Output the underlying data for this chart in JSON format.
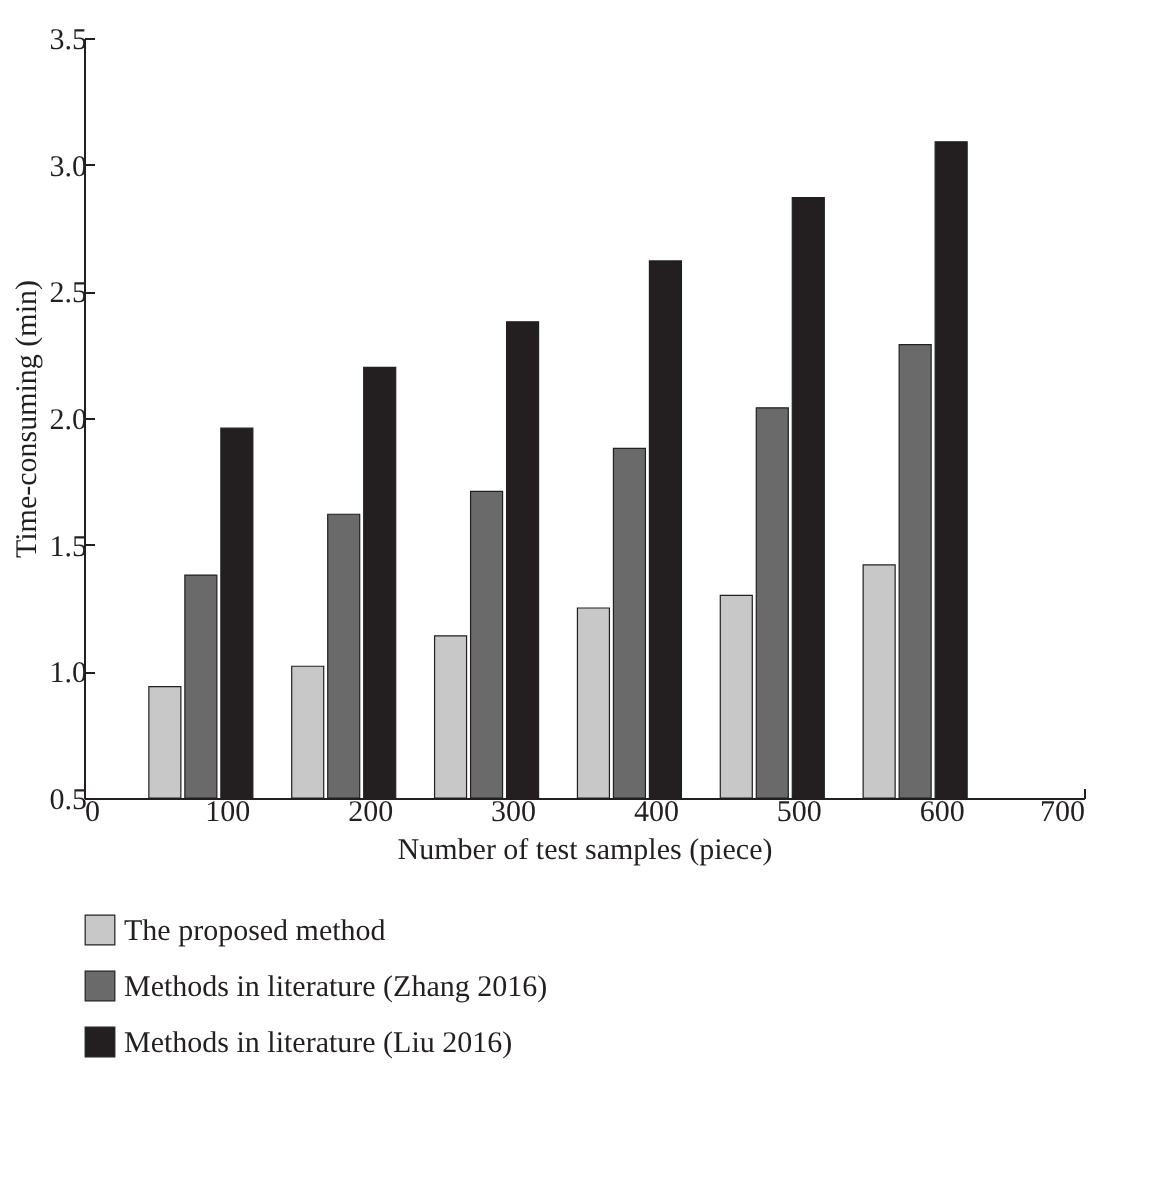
{
  "chart_data": {
    "type": "bar",
    "xlabel": "Number of test samples (piece)",
    "ylabel": "Time-consuming (min)",
    "x": [
      100,
      200,
      300,
      400,
      500,
      600
    ],
    "xlim": [
      0,
      700
    ],
    "xticks": [
      0,
      100,
      200,
      300,
      400,
      500,
      600,
      700
    ],
    "ylim": [
      0.5,
      3.5
    ],
    "yticks": [
      {
        "value": 0.5,
        "label": "0.5"
      },
      {
        "value": 1.0,
        "label": "1.0"
      },
      {
        "value": 1.5,
        "label": "1.5"
      },
      {
        "value": 2.0,
        "label": "2.0"
      },
      {
        "value": 2.5,
        "label": "2.5"
      },
      {
        "value": 3.0,
        "label": "3.0"
      },
      {
        "value": 3.5,
        "label": "3.5"
      }
    ],
    "legend": "bottom",
    "series": [
      {
        "name": "The proposed method",
        "color": "#c8c8c8",
        "values": [
          0.94,
          1.02,
          1.14,
          1.25,
          1.3,
          1.42
        ]
      },
      {
        "name": "Methods in literature (Zhang 2016)",
        "color": "#6a6a6a",
        "values": [
          1.38,
          1.62,
          1.71,
          1.88,
          2.04,
          2.29
        ]
      },
      {
        "name": "Methods in literature (Liu 2016)",
        "color": "#231f20",
        "values": [
          1.96,
          2.2,
          2.38,
          2.62,
          2.87,
          3.09
        ]
      }
    ]
  }
}
